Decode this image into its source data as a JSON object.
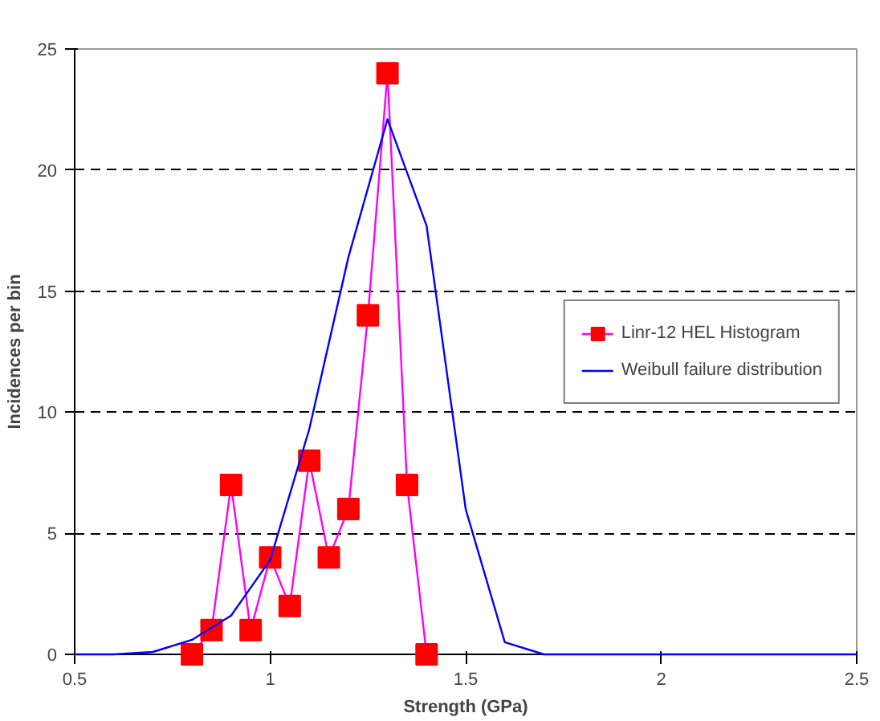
{
  "chart_data": {
    "type": "line",
    "xlabel": "Strength (GPa)",
    "ylabel": "Incidences per bin",
    "xlim": [
      0.5,
      2.5
    ],
    "xticks": [
      0.5,
      1,
      1.5,
      2,
      2.5
    ],
    "ylim": [
      0,
      25
    ],
    "yticks": [
      0,
      5,
      10,
      15,
      20,
      25
    ],
    "grid": "y",
    "legend": "right",
    "series": [
      {
        "name": "Linr-12 HEL Histogram",
        "color": "#ff00ff",
        "marker": "square",
        "x": [
          0.8,
          0.85,
          0.9,
          0.95,
          1.0,
          1.05,
          1.1,
          1.15,
          1.2,
          1.25,
          1.3,
          1.35,
          1.4
        ],
        "values": [
          0,
          1,
          7,
          1,
          4,
          2,
          8,
          4,
          6,
          14,
          24,
          7,
          0
        ]
      },
      {
        "name": "Weibull failure distribution",
        "color": "#0000ff",
        "marker": "none",
        "x": [
          0.5,
          0.6,
          0.7,
          0.8,
          0.9,
          1.0,
          1.1,
          1.2,
          1.3,
          1.4,
          1.5,
          1.6,
          1.7,
          1.8,
          1.9,
          2.0,
          2.1,
          2.2,
          2.3,
          2.4,
          2.5
        ],
        "values": [
          0,
          0,
          0.1,
          0.6,
          1.6,
          3.9,
          9.3,
          16.4,
          22.1,
          17.7,
          6,
          0.5,
          0,
          0,
          0,
          0,
          0,
          0,
          0,
          0,
          0
        ]
      }
    ]
  }
}
